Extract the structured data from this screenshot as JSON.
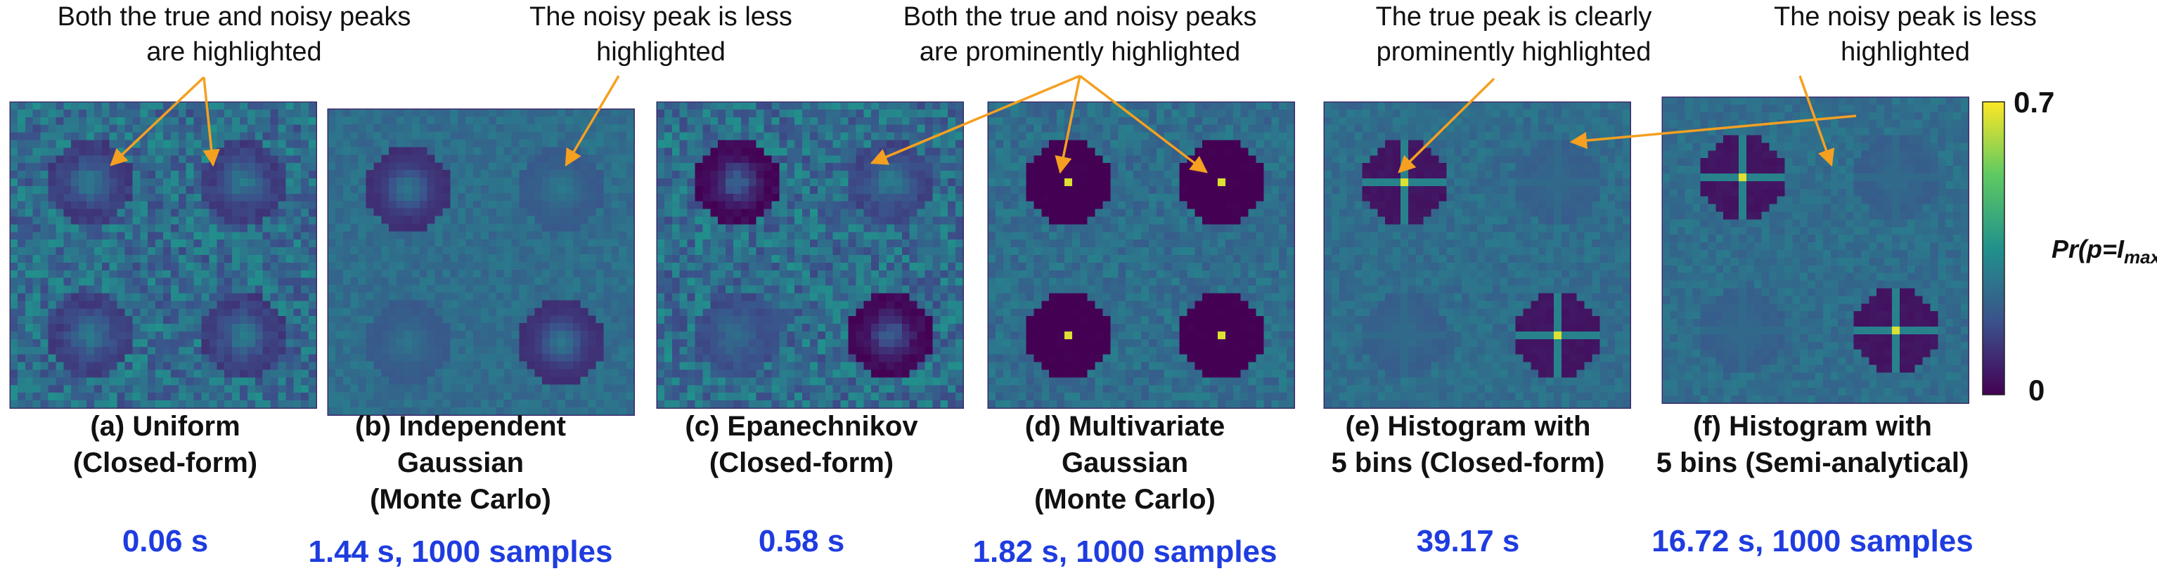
{
  "annotations": [
    {
      "lines": [
        "Both the true and noisy peaks",
        "are highlighted"
      ]
    },
    {
      "lines": [
        "The noisy peak is less",
        "highlighted"
      ]
    },
    {
      "lines": [
        "Both the true and noisy peaks",
        "are prominently highlighted"
      ]
    },
    {
      "lines": [
        "The true peak is clearly",
        "prominently highlighted"
      ]
    },
    {
      "lines": [
        "The noisy peak is less",
        "highlighted"
      ]
    }
  ],
  "panels": [
    {
      "caption": [
        "(a) Uniform",
        "(Closed-form)"
      ],
      "time": "0.06 s"
    },
    {
      "caption": [
        "(b) Independent",
        "Gaussian",
        "(Monte Carlo)"
      ],
      "time": "1.44 s, 1000 samples"
    },
    {
      "caption": [
        "(c) Epanechnikov",
        "(Closed-form)"
      ],
      "time": "0.58 s"
    },
    {
      "caption": [
        "(d) Multivariate",
        "Gaussian",
        "(Monte Carlo)"
      ],
      "time": "1.82 s, 1000 samples"
    },
    {
      "caption": [
        "(e) Histogram with",
        "5 bins (Closed-form)"
      ],
      "time": "39.17 s"
    },
    {
      "caption": [
        "(f) Histogram with",
        "5 bins (Semi-analytical)"
      ],
      "time": "16.72 s, 1000 samples"
    }
  ],
  "colorbar": {
    "ticks": [
      0,
      0.7
    ],
    "label": "Pr(p=I",
    "label_sub": "max",
    "label_end": ")"
  }
}
